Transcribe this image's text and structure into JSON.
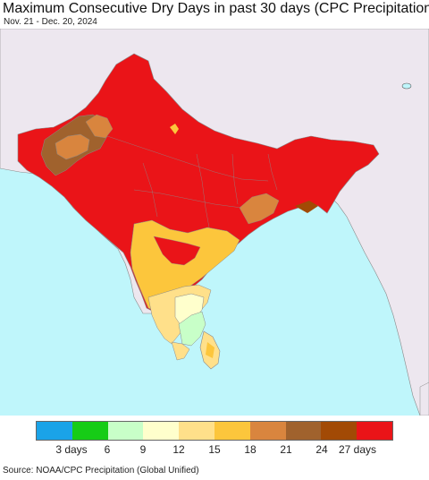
{
  "title": "Maximum Consecutive Dry Days in past 30 days (CPC Precipitation)",
  "subtitle": "Nov. 21 - Dec. 20, 2024",
  "source": "Source: NOAA/CPC Precipitation (Global Unified)",
  "legend": {
    "colors": [
      "#1aa3e8",
      "#16cc16",
      "#c8ffc8",
      "#ffffcc",
      "#ffe08a",
      "#fcc63c",
      "#d9853e",
      "#a0622d",
      "#a24a05",
      "#ea1418"
    ],
    "ticks": [
      {
        "label": "3 days",
        "bin": 1
      },
      {
        "label": "6",
        "bin": 2
      },
      {
        "label": "9",
        "bin": 3
      },
      {
        "label": "12",
        "bin": 4
      },
      {
        "label": "15",
        "bin": 5
      },
      {
        "label": "18",
        "bin": 6
      },
      {
        "label": "21",
        "bin": 7
      },
      {
        "label": "24",
        "bin": 8
      },
      {
        "label": "27 days",
        "bin": 9
      }
    ]
  },
  "map_colors": {
    "ocean": "#bff6fb",
    "outside_land": "#ede7ef",
    "red": "#ea1418",
    "brown": "#a0622d",
    "orange": "#d9853e",
    "gold": "#fcc63c",
    "light_orange": "#ffe08a",
    "cream": "#ffffcc",
    "light_green": "#c8ffc8",
    "borders": "#8a8a8a"
  }
}
